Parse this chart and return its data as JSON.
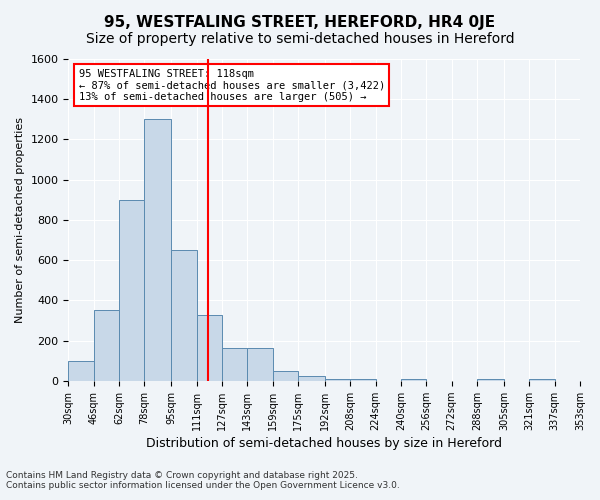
{
  "title1": "95, WESTFALING STREET, HEREFORD, HR4 0JE",
  "title2": "Size of property relative to semi-detached houses in Hereford",
  "xlabel": "Distribution of semi-detached houses by size in Hereford",
  "ylabel": "Number of semi-detached properties",
  "bin_labels": [
    "30sqm",
    "46sqm",
    "62sqm",
    "78sqm",
    "95sqm",
    "111sqm",
    "127sqm",
    "143sqm",
    "159sqm",
    "175sqm",
    "192sqm",
    "208sqm",
    "224sqm",
    "240sqm",
    "256sqm",
    "272sqm",
    "288sqm",
    "305sqm",
    "321sqm",
    "337sqm",
    "353sqm"
  ],
  "bin_edges": [
    30,
    46,
    62,
    78,
    95,
    111,
    127,
    143,
    159,
    175,
    192,
    208,
    224,
    240,
    256,
    272,
    288,
    305,
    321,
    337,
    353
  ],
  "heights": [
    100,
    350,
    900,
    1300,
    650,
    325,
    165,
    165,
    50,
    25,
    10,
    10,
    0,
    10,
    0,
    0,
    10,
    0,
    10,
    0
  ],
  "bar_color": "#c8d8e8",
  "bar_edge_color": "#5a8ab0",
  "red_line_x": 118,
  "annotation_title": "95 WESTFALING STREET: 118sqm",
  "annotation_line1": "← 87% of semi-detached houses are smaller (3,422)",
  "annotation_line2": "13% of semi-detached houses are larger (505) →",
  "annotation_box_color": "#ff0000",
  "ylim": [
    0,
    1600
  ],
  "yticks": [
    0,
    200,
    400,
    600,
    800,
    1000,
    1200,
    1400,
    1600
  ],
  "footer1": "Contains HM Land Registry data © Crown copyright and database right 2025.",
  "footer2": "Contains public sector information licensed under the Open Government Licence v3.0.",
  "bg_color": "#f0f4f8",
  "grid_color": "#ffffff",
  "title_fontsize": 11,
  "subtitle_fontsize": 10
}
